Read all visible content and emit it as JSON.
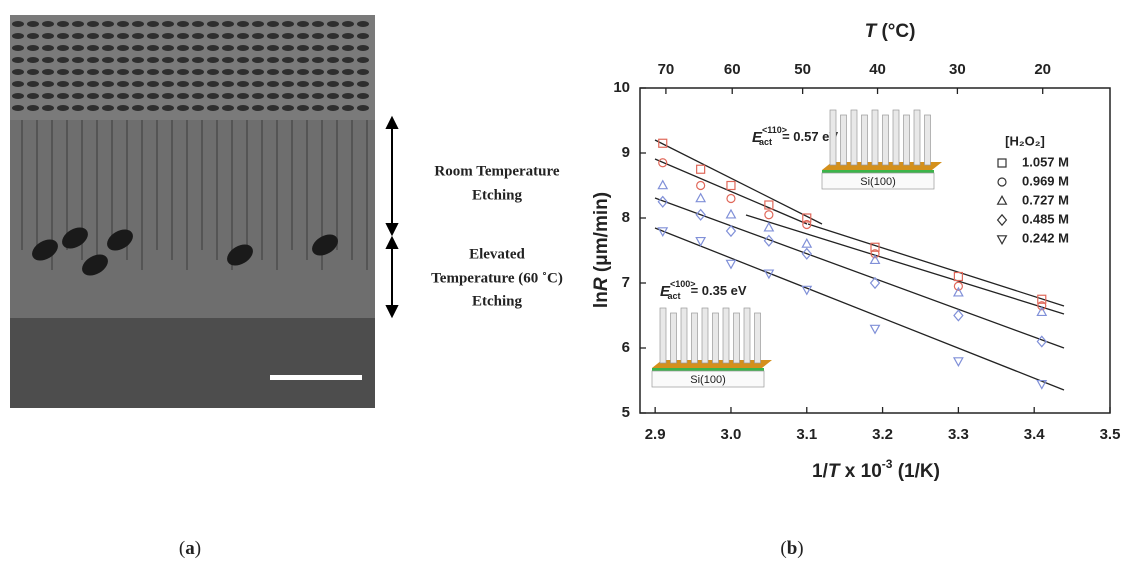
{
  "panel_a": {
    "annotations": [
      [
        "Room Temperature",
        "Etching"
      ],
      [
        "Elevated",
        "Temperature (60 ˚C)",
        "Etching"
      ]
    ]
  },
  "captions": [
    [
      "(",
      "a",
      ")"
    ],
    [
      "(",
      "b",
      ")"
    ]
  ],
  "chart_data": {
    "type": "scatter",
    "x_label": {
      "prefix": "1/",
      "italic": "T",
      "middle": " x 10",
      "sup": "-3",
      "suffix": " (1/K)"
    },
    "y_label": {
      "prefix": "ln",
      "italic": "R",
      "suffix": " (μm/min)"
    },
    "x2_label": {
      "italic": "T",
      "suffix": " (°C)"
    },
    "xlim": [
      2.88,
      3.5
    ],
    "xticks": [
      2.9,
      {
        "value": 3,
        "label": "3.0"
      },
      3.1,
      3.2,
      3.3,
      3.4,
      3.5
    ],
    "ylim": [
      5,
      10
    ],
    "yticks": [
      5,
      6,
      7,
      8,
      9,
      10
    ],
    "x2ticks": [
      70,
      60,
      50,
      40,
      30,
      20
    ],
    "legend_title": "[H₂O₂]",
    "legend_position": "right",
    "legend_color": "#333333",
    "x": [
      2.91,
      2.96,
      3.0,
      3.05,
      3.1,
      3.19,
      3.3,
      3.41
    ],
    "series": [
      {
        "name": "1.057 M",
        "marker": "square",
        "color": "#e0685a",
        "values": [
          9.15,
          8.75,
          8.5,
          8.2,
          8.0,
          7.55,
          7.1,
          6.75
        ]
      },
      {
        "name": "0.969 M",
        "marker": "circle",
        "color": "#e0685a",
        "values": [
          8.85,
          8.5,
          8.3,
          8.05,
          7.9,
          7.45,
          6.95,
          6.65
        ]
      },
      {
        "name": "0.727 M",
        "marker": "triangle",
        "color": "#8090d8",
        "values": [
          8.5,
          8.3,
          8.05,
          7.85,
          7.6,
          7.35,
          6.85,
          6.55
        ]
      },
      {
        "name": "0.485 M",
        "marker": "diamond",
        "color": "#8090d8",
        "values": [
          8.25,
          8.05,
          7.8,
          7.65,
          7.45,
          7.0,
          6.5,
          6.1
        ]
      },
      {
        "name": "0.242 M",
        "marker": "triangle-down",
        "color": "#8090d8",
        "values": [
          7.8,
          7.65,
          7.3,
          7.15,
          6.9,
          6.3,
          5.8,
          5.45
        ]
      }
    ],
    "annotations": [
      {
        "symbol": "E",
        "subscript": "act",
        "superscript": "<110>",
        "text": "= 0.57 eV"
      },
      {
        "symbol": "E",
        "subscript": "act",
        "superscript": "<100>",
        "text": "= 0.35 eV"
      }
    ],
    "insets": [
      {
        "label": "Si(100)"
      },
      {
        "label": "Si(100)"
      }
    ]
  }
}
